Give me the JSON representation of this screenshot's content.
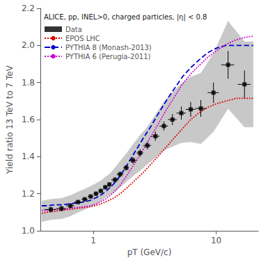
{
  "chart_data": {
    "type": "line",
    "title": "ALICE, pp, INEL>0, charged particles, |η| < 0.8",
    "xlabel": "pT (GeV/c)",
    "ylabel": "Yield ratio 13 TeV to 7 TeV",
    "log": "x",
    "xlim": [
      0.37,
      22
    ],
    "ylim": [
      1.0,
      2.2
    ],
    "xticks": [
      1,
      10
    ],
    "yticks": [
      {
        "value": 1.0,
        "label": "1.0"
      },
      1.2,
      1.4,
      1.6,
      1.8,
      {
        "value": 2.0,
        "label": "2.0"
      },
      2.2
    ],
    "grid": false,
    "legend": "upper left",
    "series": [
      {
        "name": "Data",
        "type": "scatter",
        "marker": "square",
        "color": "#000000",
        "x": [
          0.45,
          0.55,
          0.65,
          0.75,
          0.85,
          0.95,
          1.05,
          1.15,
          1.25,
          1.35,
          1.5,
          1.65,
          1.85,
          2.1,
          2.4,
          2.75,
          3.2,
          3.75,
          4.4,
          5.2,
          6.2,
          7.5,
          9.5,
          12.5,
          17.0
        ],
        "values": [
          1.115,
          1.12,
          1.135,
          1.155,
          1.17,
          1.185,
          1.2,
          1.215,
          1.235,
          1.25,
          1.275,
          1.305,
          1.34,
          1.38,
          1.42,
          1.46,
          1.51,
          1.565,
          1.6,
          1.635,
          1.655,
          1.66,
          1.745,
          1.895,
          1.79
        ],
        "yerr": [
          0.015,
          0.015,
          0.015,
          0.012,
          0.012,
          0.012,
          0.012,
          0.012,
          0.012,
          0.012,
          0.015,
          0.015,
          0.015,
          0.018,
          0.02,
          0.02,
          0.025,
          0.025,
          0.03,
          0.035,
          0.04,
          0.045,
          0.055,
          0.075,
          0.075
        ],
        "xerr_lo": [
          0.05,
          0.05,
          0.05,
          0.05,
          0.05,
          0.05,
          0.05,
          0.05,
          0.05,
          0.05,
          0.1,
          0.1,
          0.1,
          0.15,
          0.15,
          0.2,
          0.25,
          0.3,
          0.35,
          0.45,
          0.55,
          0.75,
          1.0,
          1.5,
          2.0
        ],
        "xerr_hi": [
          0.05,
          0.05,
          0.05,
          0.05,
          0.05,
          0.05,
          0.05,
          0.05,
          0.05,
          0.05,
          0.1,
          0.1,
          0.1,
          0.15,
          0.15,
          0.2,
          0.25,
          0.3,
          0.35,
          0.45,
          0.55,
          0.75,
          1.0,
          1.5,
          2.0
        ]
      },
      {
        "name": "EPOS LHC",
        "type": "line",
        "line_style": "dotted",
        "color": "#dd0000",
        "x": [
          0.38,
          0.42,
          0.48,
          0.55,
          0.63,
          0.72,
          0.83,
          0.95,
          1.1,
          1.25,
          1.45,
          1.65,
          1.9,
          2.2,
          2.55,
          2.95,
          3.4,
          3.95,
          4.6,
          5.3,
          6.2,
          7.2,
          8.5,
          10.0,
          12.0,
          14.5,
          17.5,
          20.0
        ],
        "values": [
          1.095,
          1.1,
          1.105,
          1.11,
          1.115,
          1.12,
          1.125,
          1.13,
          1.14,
          1.155,
          1.175,
          1.2,
          1.235,
          1.275,
          1.315,
          1.36,
          1.405,
          1.455,
          1.505,
          1.55,
          1.6,
          1.635,
          1.665,
          1.685,
          1.7,
          1.715,
          1.715,
          1.715
        ]
      },
      {
        "name": "PYTHIA 8 (Monash-2013)",
        "type": "line",
        "line_style": "dashed",
        "color": "#0000cc",
        "x": [
          0.38,
          0.42,
          0.48,
          0.55,
          0.63,
          0.72,
          0.83,
          0.95,
          1.1,
          1.25,
          1.45,
          1.65,
          1.9,
          2.2,
          2.55,
          2.95,
          3.4,
          3.95,
          4.6,
          5.3,
          6.2,
          7.2,
          8.5,
          10.0,
          12.0,
          14.5,
          17.5,
          20.0
        ],
        "values": [
          1.135,
          1.135,
          1.14,
          1.14,
          1.145,
          1.15,
          1.155,
          1.165,
          1.185,
          1.21,
          1.25,
          1.295,
          1.36,
          1.43,
          1.5,
          1.565,
          1.635,
          1.705,
          1.77,
          1.83,
          1.88,
          1.92,
          1.96,
          1.985,
          2.0,
          2.0,
          2.0,
          2.0
        ]
      },
      {
        "name": "PYTHIA 6 (Perugia-2011)",
        "type": "line",
        "line_style": "dotted",
        "color": "#cc00cc",
        "x": [
          0.38,
          0.42,
          0.48,
          0.55,
          0.63,
          0.72,
          0.83,
          0.95,
          1.1,
          1.25,
          1.45,
          1.65,
          1.9,
          2.2,
          2.55,
          2.95,
          3.4,
          3.95,
          4.6,
          5.3,
          6.2,
          7.2,
          8.5,
          10.0,
          12.0,
          14.5,
          17.5,
          20.0
        ],
        "values": [
          1.11,
          1.11,
          1.115,
          1.115,
          1.12,
          1.125,
          1.13,
          1.135,
          1.15,
          1.17,
          1.205,
          1.245,
          1.305,
          1.37,
          1.44,
          1.51,
          1.58,
          1.655,
          1.725,
          1.79,
          1.845,
          1.89,
          1.935,
          1.97,
          2.005,
          2.03,
          2.045,
          2.05
        ]
      },
      {
        "type": "band",
        "color": "#c8c8c8",
        "x": [
          0.38,
          0.45,
          0.55,
          0.65,
          0.75,
          0.85,
          0.95,
          1.05,
          1.15,
          1.25,
          1.35,
          1.5,
          1.65,
          1.85,
          2.1,
          2.4,
          2.75,
          3.2,
          3.75,
          4.4,
          5.2,
          6.2,
          7.5,
          9.5,
          12.5,
          17.0,
          20.0
        ],
        "lower": [
          1.05,
          1.06,
          1.065,
          1.08,
          1.1,
          1.115,
          1.13,
          1.145,
          1.16,
          1.18,
          1.195,
          1.21,
          1.235,
          1.265,
          1.295,
          1.325,
          1.36,
          1.395,
          1.435,
          1.455,
          1.475,
          1.48,
          1.47,
          1.535,
          1.66,
          1.56,
          1.56
        ],
        "upper": [
          1.16,
          1.17,
          1.175,
          1.19,
          1.21,
          1.225,
          1.24,
          1.255,
          1.27,
          1.29,
          1.305,
          1.34,
          1.375,
          1.415,
          1.465,
          1.515,
          1.56,
          1.625,
          1.695,
          1.745,
          1.795,
          1.83,
          1.85,
          1.955,
          2.13,
          2.02,
          2.02
        ]
      }
    ]
  }
}
